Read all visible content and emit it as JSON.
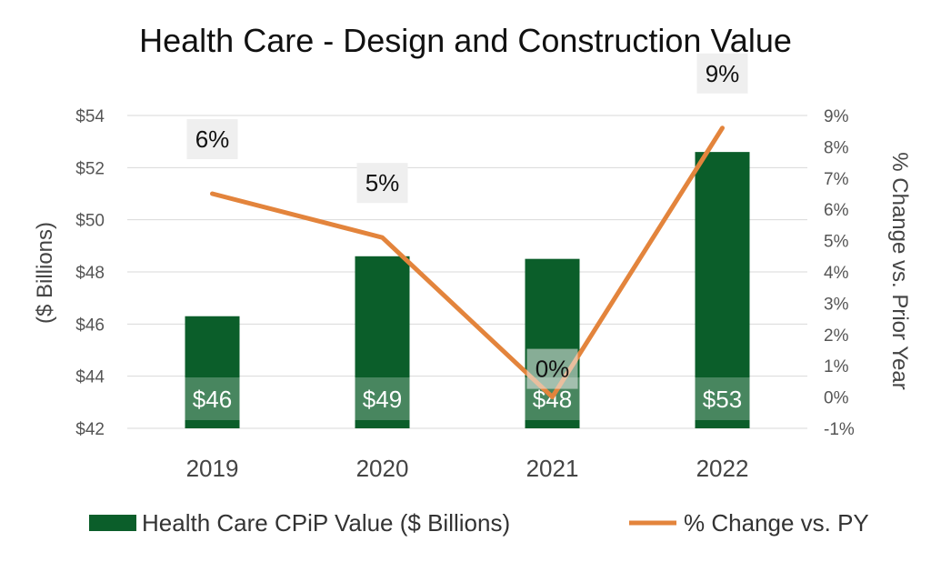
{
  "chart_data": {
    "type": "bar",
    "title": "Health Care - Design and Construction Value",
    "categories": [
      "2019",
      "2020",
      "2021",
      "2022"
    ],
    "series": [
      {
        "name": "Health Care CPiP Value ($ Billions)",
        "type": "bar",
        "axis": "left",
        "values": [
          46.3,
          48.6,
          48.5,
          52.6
        ],
        "labels": [
          "$46",
          "$49",
          "$48",
          "$53"
        ]
      },
      {
        "name": "% Change vs. PY",
        "type": "line",
        "axis": "right",
        "values": [
          6.5,
          5.1,
          0.0,
          8.6
        ],
        "labels": [
          "6%",
          "5%",
          "0%",
          "9%"
        ]
      }
    ],
    "ylabel": "($ Billions)",
    "y2label": "% Change vs. Prior Year",
    "ylim": [
      42,
      54
    ],
    "y2lim": [
      -1,
      9
    ],
    "yticks": [
      "$42",
      "$44",
      "$46",
      "$48",
      "$50",
      "$52",
      "$54"
    ],
    "y2ticks": [
      "-1%",
      "0%",
      "1%",
      "2%",
      "3%",
      "4%",
      "5%",
      "6%",
      "7%",
      "8%",
      "9%"
    ],
    "grid": true,
    "legend": "bottom",
    "colors": {
      "bar": "#0b5e2a",
      "line": "#e3843c",
      "grid": "#d9d9d9",
      "label_box": "#efefef"
    }
  }
}
